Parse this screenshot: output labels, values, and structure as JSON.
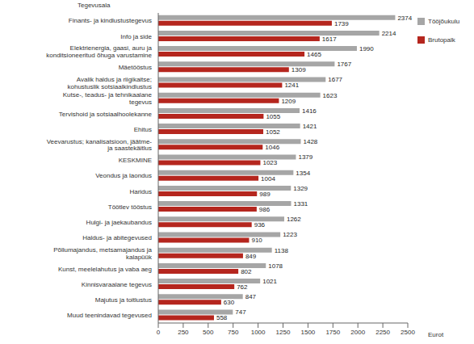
{
  "chart_data": {
    "type": "bar",
    "orientation": "horizontal",
    "ylabel": "Tegevusala",
    "xlabel": "Eurot",
    "categories": [
      "Finants- ja kindlustustegevus",
      "Info ja side",
      "Elektrienergia, gaasi, auru ja konditsioneeritud õhuga varustamine",
      "Mäetööstus",
      "Avalik haldus ja riigikaitse; kohustuslik sotsiaalkindlustus",
      "Kutse-, teadus- ja tehnikaalane tegevus",
      "Tervishoid ja sotsiaalhoolekanne",
      "Ehitus",
      "Veevarustus; kanalisatsioon, jäätme- ja saastekäitlus",
      "KESKMINE",
      "Veondus ja laondus",
      "Haridus",
      "Töötlev tööstus",
      "Hulgi- ja jaekaubandus",
      "Haldus- ja abitegevused",
      "Põllumajandus, metsamajandus ja kalapüük",
      "Kunst, meelelahutus ja vaba aeg",
      "Kinnisvaraalane tegevus",
      "Majutus ja toitlustus",
      "Muud teenindavad tegevused"
    ],
    "series": [
      {
        "name": "Tööjõukulu",
        "color": "#a6a6a6",
        "values": [
          2374,
          2214,
          1990,
          1767,
          1677,
          1623,
          1416,
          1421,
          1428,
          1379,
          1354,
          1329,
          1331,
          1262,
          1223,
          1138,
          1078,
          1021,
          847,
          747
        ]
      },
      {
        "name": "Brutopalk",
        "color": "#b5261e",
        "values": [
          1739,
          1617,
          1465,
          1309,
          1241,
          1209,
          1055,
          1052,
          1046,
          1023,
          1004,
          989,
          986,
          936,
          910,
          849,
          802,
          762,
          630,
          558
        ]
      }
    ],
    "xlim": [
      0,
      2500
    ],
    "xticks": [
      0,
      250,
      500,
      750,
      1000,
      1250,
      1500,
      1750,
      2000,
      2250,
      2500
    ],
    "data_labels": true,
    "legend": "right",
    "grid": false
  }
}
